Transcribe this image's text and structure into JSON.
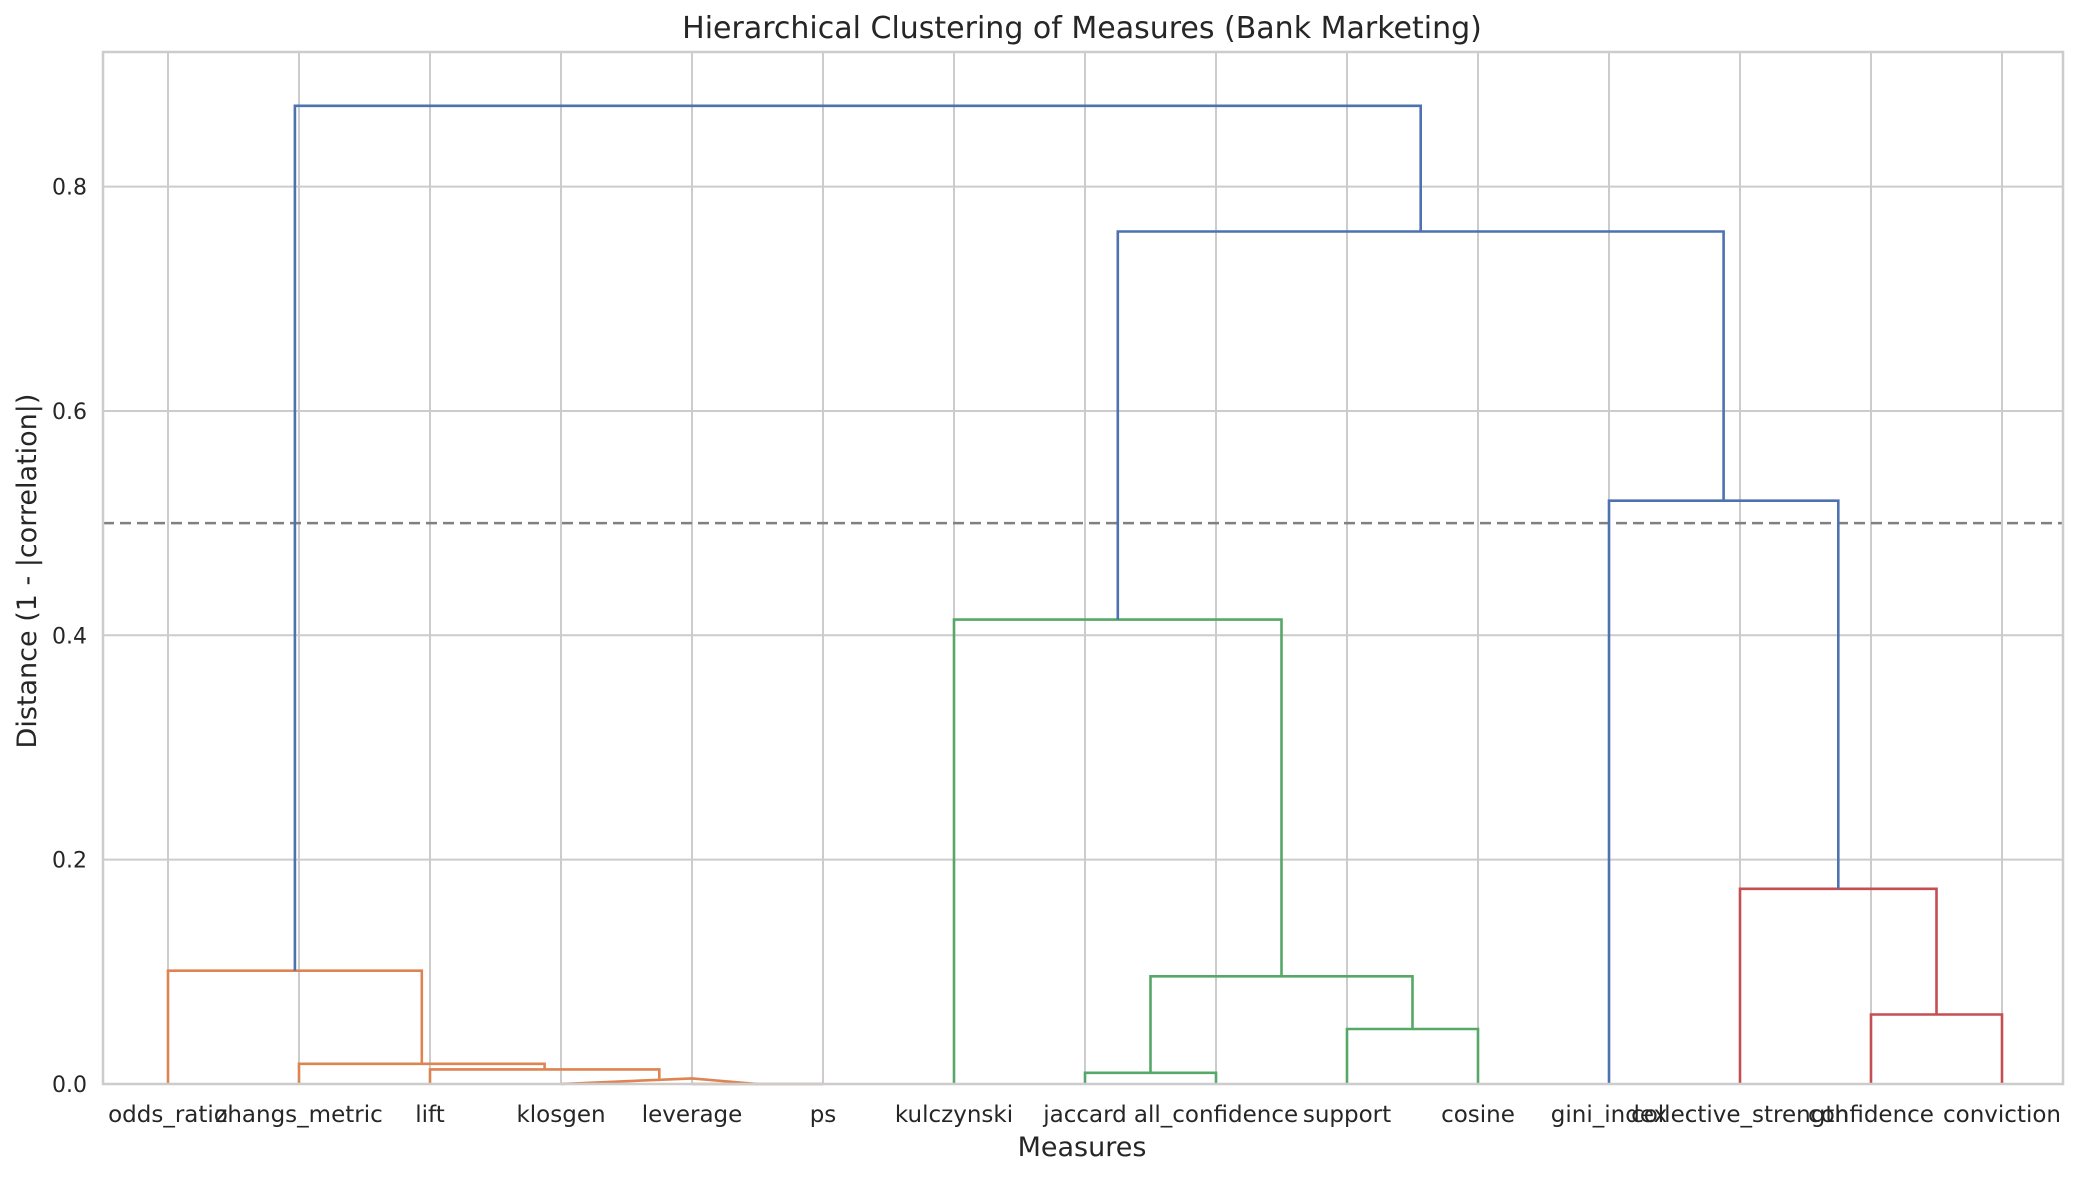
{
  "chart_data": {
    "type": "dendrogram",
    "title": "Hierarchical Clustering of Measures (Bank Marketing)",
    "xlabel": "Measures",
    "ylabel": "Distance (1 - |correlation|)",
    "ylim": [
      0,
      0.92
    ],
    "yticks": [
      "0.0",
      "0.2",
      "0.4",
      "0.6",
      "0.8"
    ],
    "ytick_values": [
      0.0,
      0.2,
      0.4,
      0.6,
      0.8
    ],
    "threshold": 0.5,
    "grid": true,
    "leaves": [
      "odds_ratio",
      "zhangs_metric",
      "lift",
      "klosgen",
      "leverage",
      "ps",
      "kulczynski",
      "jaccard",
      "all_confidence",
      "support",
      "cosine",
      "gini_index",
      "collective_strength",
      "confidence",
      "conviction"
    ],
    "colors": {
      "orange": "#dd8452",
      "green": "#55a868",
      "red": "#c44e52",
      "blue": "#4c72b0",
      "grid": "#cccccc",
      "threshold": "#808080"
    },
    "links": [
      {
        "x": [
          4,
          5,
          5,
          4
        ],
        "y": [
          0.0,
          0.0,
          0.0,
          0.0
        ],
        "color": "orange"
      },
      {
        "x": [
          3,
          4,
          4,
          4.5
        ],
        "y": [
          0.0,
          0.005,
          0.005,
          0.0
        ],
        "color": "orange"
      },
      {
        "x": [
          2,
          2,
          3.75,
          3.75
        ],
        "y": [
          0.0,
          0.013,
          0.013,
          0.005
        ],
        "color": "orange"
      },
      {
        "x": [
          1,
          1,
          2.875,
          2.875
        ],
        "y": [
          0.0,
          0.018,
          0.018,
          0.013
        ],
        "color": "orange"
      },
      {
        "x": [
          0,
          0,
          1.9375,
          1.9375
        ],
        "y": [
          0.0,
          0.101,
          0.101,
          0.018
        ],
        "color": "orange"
      },
      {
        "x": [
          7,
          7,
          8,
          8
        ],
        "y": [
          0.0,
          0.01,
          0.01,
          0.0
        ],
        "color": "green"
      },
      {
        "x": [
          9,
          9,
          10,
          10
        ],
        "y": [
          0.0,
          0.049,
          0.049,
          0.0
        ],
        "color": "green"
      },
      {
        "x": [
          7.5,
          7.5,
          9.5,
          9.5
        ],
        "y": [
          0.01,
          0.096,
          0.096,
          0.049
        ],
        "color": "green"
      },
      {
        "x": [
          6,
          6,
          8.5,
          8.5
        ],
        "y": [
          0.0,
          0.414,
          0.414,
          0.096
        ],
        "color": "green"
      },
      {
        "x": [
          13,
          13,
          14,
          14
        ],
        "y": [
          0.0,
          0.062,
          0.062,
          0.0
        ],
        "color": "red"
      },
      {
        "x": [
          12,
          12,
          13.5,
          13.5
        ],
        "y": [
          0.0,
          0.174,
          0.174,
          0.062
        ],
        "color": "red"
      },
      {
        "x": [
          11,
          11,
          12.75,
          12.75
        ],
        "y": [
          0.0,
          0.52,
          0.52,
          0.174
        ],
        "color": "blue"
      },
      {
        "x": [
          7.25,
          7.25,
          11.875,
          11.875
        ],
        "y": [
          0.414,
          0.76,
          0.76,
          0.52
        ],
        "color": "blue"
      },
      {
        "x": [
          0.96875,
          0.96875,
          9.5625,
          9.5625
        ],
        "y": [
          0.101,
          0.872,
          0.872,
          0.76
        ],
        "color": "blue"
      }
    ]
  }
}
